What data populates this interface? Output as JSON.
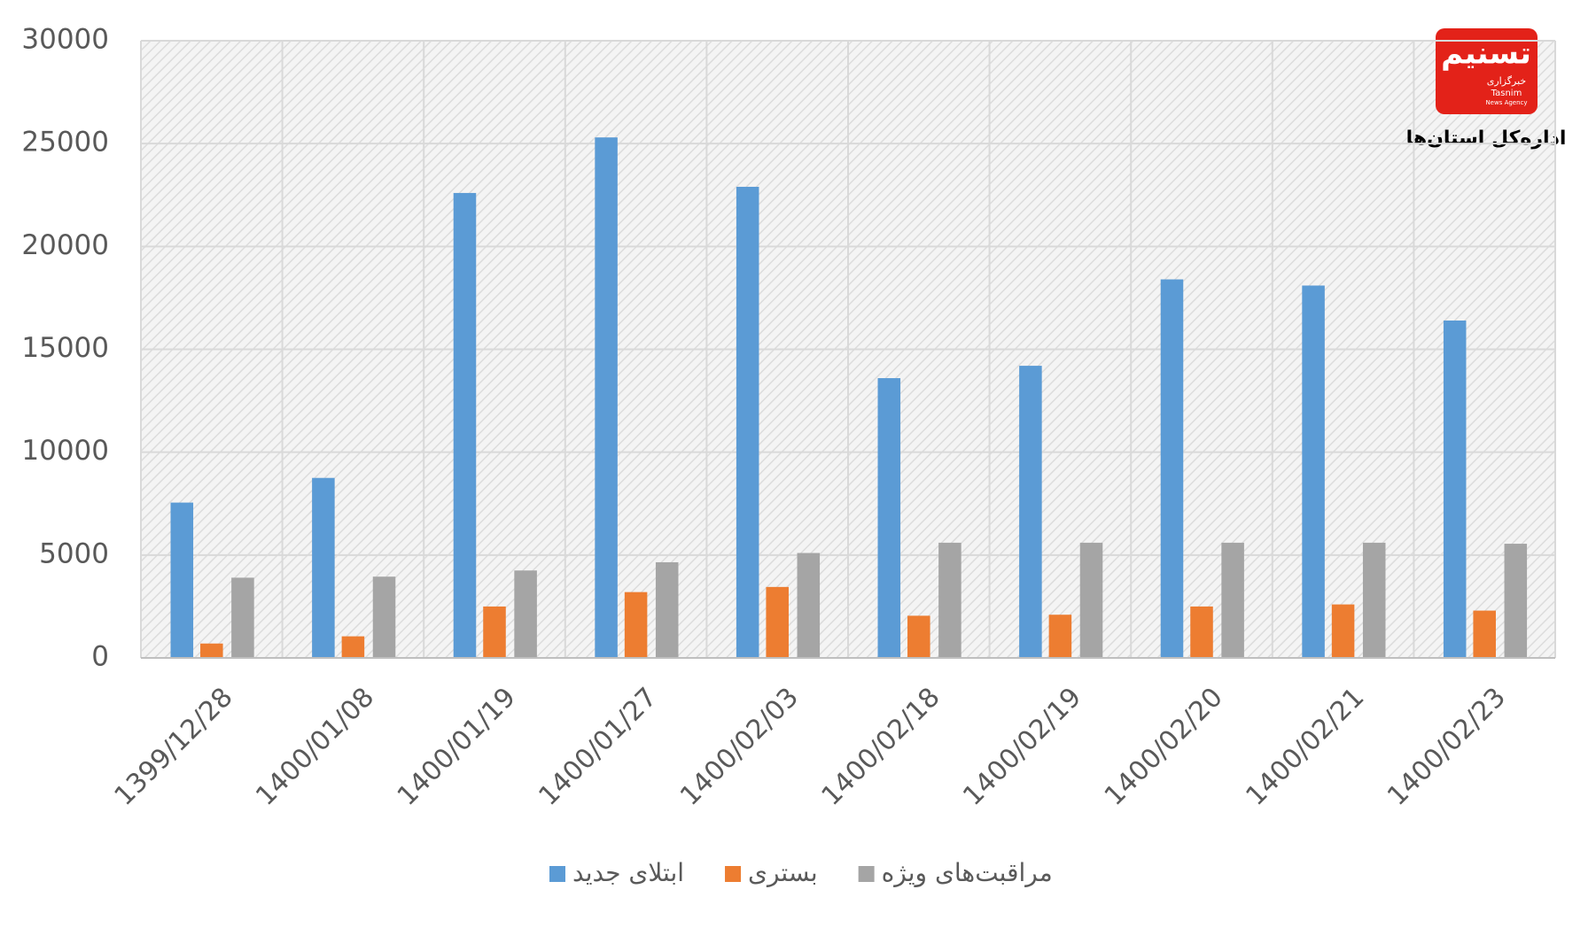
{
  "chart_data": {
    "type": "bar",
    "subtitle": "اداره‌کل استان‌ها",
    "logo": {
      "name": "تسنیم",
      "agency": "خبرگزاری",
      "en": "Tasnim",
      "en_sub": "News Agency"
    },
    "categories": [
      "1399/12/28",
      "1400/01/08",
      "1400/01/19",
      "1400/01/27",
      "1400/02/03",
      "1400/02/18",
      "1400/02/19",
      "1400/02/20",
      "1400/02/21",
      "1400/02/23"
    ],
    "series": [
      {
        "name": "ابتلای جدید",
        "color": "#5b9bd5",
        "values": [
          7550,
          8750,
          22600,
          25300,
          22900,
          13600,
          14200,
          18400,
          18100,
          16400
        ]
      },
      {
        "name": "بستری",
        "color": "#ed7d31",
        "values": [
          700,
          1050,
          2500,
          3200,
          3450,
          2050,
          2100,
          2500,
          2600,
          2300
        ]
      },
      {
        "name": "مراقبت‌های ویژه",
        "color": "#a5a5a5",
        "values": [
          3900,
          3950,
          4250,
          4650,
          5100,
          5600,
          5600,
          5600,
          5600,
          5550
        ]
      }
    ],
    "ylim": [
      0,
      30000
    ],
    "yticks": [
      0,
      5000,
      10000,
      15000,
      20000,
      25000,
      30000
    ],
    "grid": true,
    "legend": "bottom"
  }
}
